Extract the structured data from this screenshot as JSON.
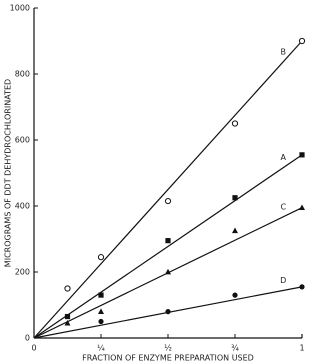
{
  "chart_data": {
    "type": "scatter",
    "x_label": "FRACTION OF ENZYME PREPARATION USED",
    "y_label": "MICROGRAMS OF DDT DEHYDROCHLORINATED",
    "x": [
      0.125,
      0.25,
      0.5,
      0.75,
      1
    ],
    "series": [
      {
        "name": "B",
        "marker": "open-circle",
        "color": "#111111",
        "values": [
          150,
          245,
          415,
          650,
          900
        ]
      },
      {
        "name": "A",
        "marker": "square",
        "color": "#111111",
        "values": [
          65,
          130,
          295,
          425,
          555
        ]
      },
      {
        "name": "C",
        "marker": "triangle",
        "color": "#111111",
        "values": [
          45,
          80,
          200,
          325,
          395
        ]
      },
      {
        "name": "D",
        "marker": "circle",
        "color": "#111111",
        "values": [
          null,
          50,
          80,
          130,
          155
        ]
      }
    ],
    "xlim": [
      0,
      1
    ],
    "ylim": [
      0,
      1000
    ],
    "xticks": [
      0,
      {
        "value": 0.25,
        "label": "¼"
      },
      {
        "value": 0.5,
        "label": "½"
      },
      {
        "value": 0.75,
        "label": "¾"
      },
      1
    ],
    "yticks": [
      0,
      200,
      400,
      600,
      800,
      1000
    ]
  }
}
